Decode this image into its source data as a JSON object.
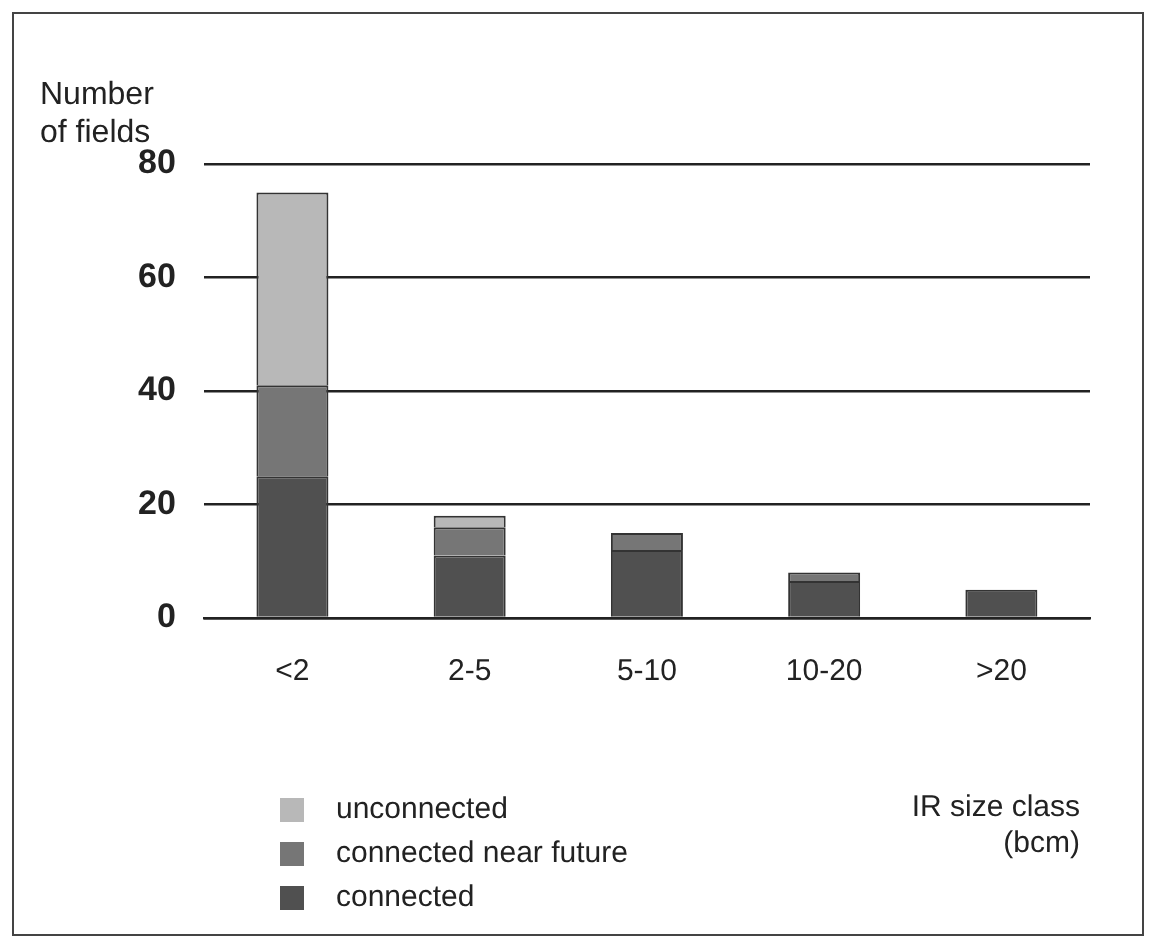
{
  "chart_data": {
    "type": "bar",
    "stacked": true,
    "ylabel": "Number\nof fields",
    "xlabel": "IR size class\n(bcm)",
    "categories": [
      "<2",
      "2-5",
      "5-10",
      "10-20",
      ">20"
    ],
    "series": [
      {
        "name": "connected",
        "color": "#505050",
        "values": [
          25,
          11,
          12,
          6.5,
          5
        ]
      },
      {
        "name": "connected near future",
        "color": "#767676",
        "values": [
          16,
          5,
          3,
          1.5,
          0
        ]
      },
      {
        "name": "unconnected",
        "color": "#b8b8b8",
        "values": [
          34,
          2,
          0,
          0,
          0
        ]
      }
    ],
    "ylim": [
      0,
      80
    ],
    "yticks": [
      0,
      20,
      40,
      60,
      80
    ],
    "grid": "y",
    "legend": "bottom left"
  }
}
